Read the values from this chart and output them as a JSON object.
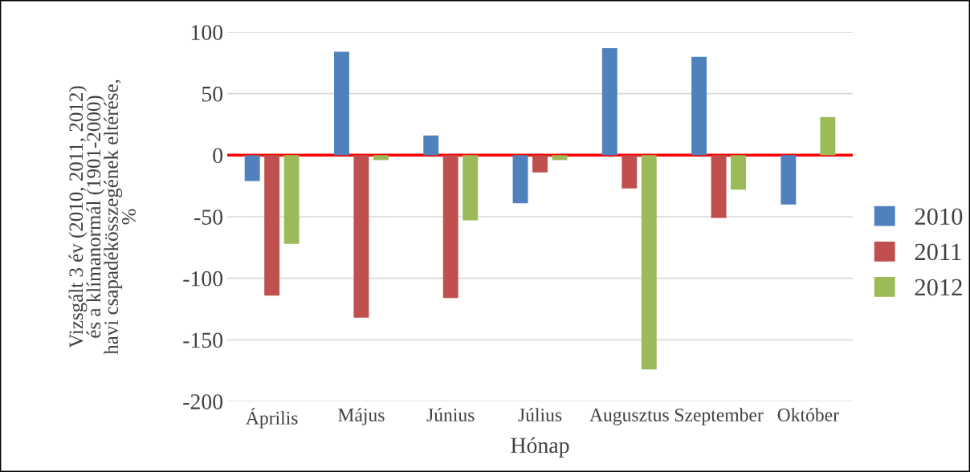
{
  "chart_data": {
    "type": "bar",
    "xlabel": "Hónap",
    "ylabel": "Vizsgált 3 év (2010, 2011, 2012)\nés a klímanormál (1901-2000)\nhavi csapadékösszegének eltérése,\n%",
    "categories": [
      "Április",
      "Május",
      "Június",
      "Július",
      "Augusztus",
      "Szeptember",
      "Október"
    ],
    "series": [
      {
        "name": "2010",
        "color": "#4f81bd",
        "values": [
          -21,
          84,
          16,
          -39,
          87,
          80,
          -40
        ]
      },
      {
        "name": "2011",
        "color": "#c0504d",
        "values": [
          -114,
          -132,
          -116,
          -14,
          -27,
          -51,
          0
        ]
      },
      {
        "name": "2012",
        "color": "#9bbb59",
        "values": [
          -72,
          -4,
          -53,
          -4,
          -174,
          -28,
          31
        ]
      }
    ],
    "ylim": [
      -200,
      100
    ],
    "yticks": [
      -200,
      -150,
      -100,
      -50,
      0,
      50,
      100
    ],
    "grid": "y",
    "legend": "right",
    "ref_lines": [
      {
        "axis": "y",
        "value": 0,
        "color": "#ff0000"
      }
    ]
  }
}
